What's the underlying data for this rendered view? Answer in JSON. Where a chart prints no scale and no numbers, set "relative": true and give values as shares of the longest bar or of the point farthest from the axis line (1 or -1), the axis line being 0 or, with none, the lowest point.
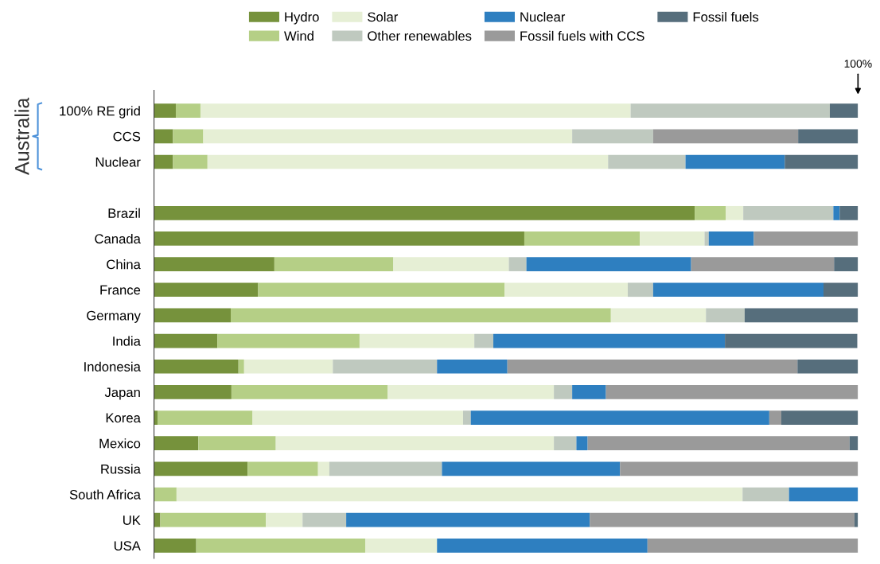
{
  "chart_data": {
    "type": "bar",
    "orientation": "horizontal",
    "stacked": true,
    "relative": true,
    "legend": "top",
    "grid": false,
    "categories": [
      "100% RE grid",
      "CCS",
      "Nuclear",
      null,
      "Brazil",
      "Canada",
      "China",
      "France",
      "Germany",
      "India",
      "Indonesia",
      "Japan",
      "Korea",
      "Mexico",
      "Russia",
      "South Africa",
      "UK",
      "USA"
    ],
    "series": [
      {
        "name": "Hydro",
        "color": "#76923c",
        "values": [
          0.031,
          0.027,
          0.027,
          null,
          0.768,
          0.526,
          0.171,
          0.148,
          0.109,
          0.09,
          0.12,
          0.11,
          0.005,
          0.063,
          0.133,
          0,
          0.009,
          0.06
        ]
      },
      {
        "name": "Wind",
        "color": "#b5cf86",
        "values": [
          0.035,
          0.043,
          0.049,
          null,
          0.044,
          0.164,
          0.169,
          0.35,
          0.54,
          0.202,
          0.008,
          0.222,
          0.135,
          0.11,
          0.1,
          0.032,
          0.15,
          0.24
        ]
      },
      {
        "name": "Solar",
        "color": "#e6efd5",
        "values": [
          0.611,
          0.524,
          0.569,
          null,
          0.025,
          0.092,
          0.164,
          0.175,
          0.135,
          0.163,
          0.126,
          0.236,
          0.299,
          0.395,
          0.016,
          0.804,
          0.052,
          0.102
        ]
      },
      {
        "name": "Other renewables",
        "color": "#bfc9bf",
        "values": [
          0.283,
          0.115,
          0.11,
          null,
          0.128,
          0.006,
          0.025,
          0.036,
          0.055,
          0.027,
          0.148,
          0.026,
          0.011,
          0.032,
          0.16,
          0.066,
          0.062,
          0
        ]
      },
      {
        "name": "Nuclear",
        "color": "#2e7fc0",
        "values": [
          0,
          0,
          0.141,
          null,
          0.009,
          0.064,
          0.234,
          0.242,
          0,
          0.329,
          0.1,
          0.048,
          0.424,
          0.016,
          0.253,
          0.098,
          0.346,
          0.299
        ]
      },
      {
        "name": "Fossil fuels with CCS",
        "color": "#9a9a9a",
        "values": [
          0,
          0.206,
          0,
          null,
          0,
          0.148,
          0.203,
          0,
          0,
          0,
          0.412,
          0.358,
          0.017,
          0.372,
          0.338,
          0,
          0.376,
          0.299
        ]
      },
      {
        "name": "Fossil fuels",
        "color": "#566e7c",
        "values": [
          0.04,
          0.085,
          0.104,
          null,
          0.026,
          0,
          0.034,
          0.049,
          0.161,
          0.188,
          0.086,
          0,
          0.109,
          0.012,
          0,
          0,
          0.005,
          0
        ]
      }
    ],
    "annotations": [
      {
        "text": "100%",
        "x": 1
      },
      "Australia"
    ]
  }
}
